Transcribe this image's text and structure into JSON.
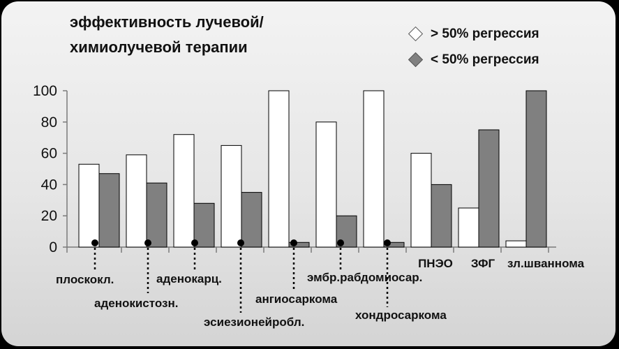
{
  "chart_data": {
    "type": "bar",
    "title_lines": [
      "эффективность лучевой/",
      "химиолучевой терапии"
    ],
    "xlabel": "",
    "ylabel": "",
    "ylim": [
      0,
      100
    ],
    "yticks": [
      0,
      20,
      40,
      60,
      80,
      100
    ],
    "grid": false,
    "legend_position": "top-right",
    "categories": [
      "плоскокл.",
      "аденокистозн.",
      "аденокарц.",
      "эсиезионейробл.",
      "ангиосаркома",
      "эмбр.рабдомиосар.",
      "хондросаркома",
      "ПНЭО",
      "ЗФГ",
      "зл.шваннома"
    ],
    "series": [
      {
        "name": "> 50% регрессия",
        "color": "#ffffff",
        "values": [
          53,
          59,
          72,
          65,
          100,
          80,
          100,
          60,
          25,
          4
        ]
      },
      {
        "name": "< 50% регрессия",
        "color": "#808080",
        "values": [
          47,
          41,
          28,
          35,
          3,
          20,
          3,
          40,
          75,
          100
        ]
      }
    ]
  }
}
